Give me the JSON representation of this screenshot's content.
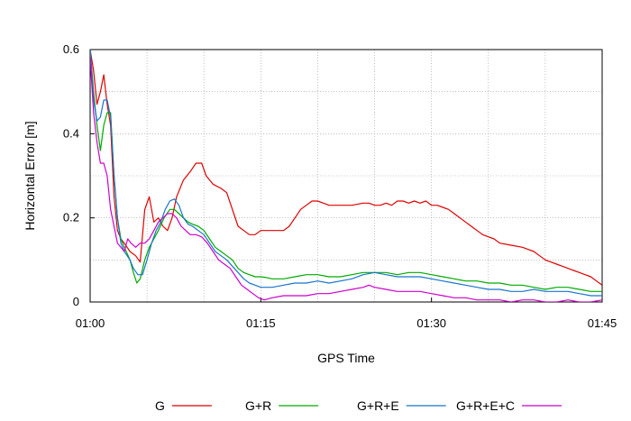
{
  "chart_data": {
    "type": "line",
    "xlabel": "GPS Time",
    "ylabel": "Horizontal Error [m]",
    "xlim": [
      0,
      45
    ],
    "ylim": [
      0,
      0.6
    ],
    "x_ticks": [
      {
        "value": 0,
        "label": "01:00"
      },
      {
        "value": 15,
        "label": "01:15"
      },
      {
        "value": 30,
        "label": "01:30"
      },
      {
        "value": 45,
        "label": "01:45"
      }
    ],
    "y_ticks": [
      {
        "value": 0,
        "label": "0"
      },
      {
        "value": 0.2,
        "label": "0.2"
      },
      {
        "value": 0.4,
        "label": "0.4"
      },
      {
        "value": 0.6,
        "label": "0.6"
      }
    ],
    "grid": true,
    "legend_position": "bottom",
    "series": [
      {
        "name": "G",
        "color": "#e00000",
        "points": [
          [
            0,
            0.6
          ],
          [
            0.3,
            0.55
          ],
          [
            0.6,
            0.47
          ],
          [
            0.9,
            0.5
          ],
          [
            1.2,
            0.54
          ],
          [
            1.5,
            0.47
          ],
          [
            1.8,
            0.42
          ],
          [
            2.1,
            0.25
          ],
          [
            2.4,
            0.17
          ],
          [
            2.7,
            0.15
          ],
          [
            3.0,
            0.14
          ],
          [
            3.5,
            0.12
          ],
          [
            4.0,
            0.11
          ],
          [
            4.4,
            0.095
          ],
          [
            4.8,
            0.22
          ],
          [
            5.2,
            0.25
          ],
          [
            5.6,
            0.19
          ],
          [
            6.0,
            0.2
          ],
          [
            6.4,
            0.18
          ],
          [
            6.8,
            0.17
          ],
          [
            7.2,
            0.2
          ],
          [
            7.6,
            0.25
          ],
          [
            8.2,
            0.29
          ],
          [
            8.8,
            0.31
          ],
          [
            9.3,
            0.33
          ],
          [
            9.8,
            0.33
          ],
          [
            10.2,
            0.3
          ],
          [
            10.8,
            0.28
          ],
          [
            11.5,
            0.27
          ],
          [
            12.0,
            0.26
          ],
          [
            12.5,
            0.22
          ],
          [
            13.0,
            0.18
          ],
          [
            13.5,
            0.17
          ],
          [
            14.0,
            0.16
          ],
          [
            14.5,
            0.16
          ],
          [
            15.0,
            0.17
          ],
          [
            15.5,
            0.17
          ],
          [
            16.0,
            0.17
          ],
          [
            16.5,
            0.17
          ],
          [
            17.0,
            0.17
          ],
          [
            17.5,
            0.18
          ],
          [
            18.0,
            0.2
          ],
          [
            18.5,
            0.22
          ],
          [
            19.0,
            0.23
          ],
          [
            19.5,
            0.24
          ],
          [
            20.0,
            0.24
          ],
          [
            20.5,
            0.235
          ],
          [
            21,
            0.23
          ],
          [
            22,
            0.23
          ],
          [
            23,
            0.23
          ],
          [
            24,
            0.235
          ],
          [
            24.5,
            0.235
          ],
          [
            25,
            0.23
          ],
          [
            25.5,
            0.23
          ],
          [
            26,
            0.235
          ],
          [
            26.5,
            0.23
          ],
          [
            27,
            0.24
          ],
          [
            27.5,
            0.24
          ],
          [
            28,
            0.235
          ],
          [
            28.5,
            0.24
          ],
          [
            29,
            0.235
          ],
          [
            29.5,
            0.24
          ],
          [
            30,
            0.23
          ],
          [
            30.5,
            0.23
          ],
          [
            31,
            0.225
          ],
          [
            31.5,
            0.22
          ],
          [
            32,
            0.21
          ],
          [
            32.5,
            0.2
          ],
          [
            33,
            0.19
          ],
          [
            33.5,
            0.18
          ],
          [
            34,
            0.17
          ],
          [
            34.5,
            0.16
          ],
          [
            35,
            0.155
          ],
          [
            35.5,
            0.15
          ],
          [
            36,
            0.14
          ],
          [
            37,
            0.135
          ],
          [
            38,
            0.13
          ],
          [
            38.5,
            0.125
          ],
          [
            39,
            0.12
          ],
          [
            39.5,
            0.11
          ],
          [
            40,
            0.1
          ],
          [
            40.5,
            0.095
          ],
          [
            41,
            0.09
          ],
          [
            41.5,
            0.085
          ],
          [
            42,
            0.08
          ],
          [
            42.5,
            0.075
          ],
          [
            43,
            0.07
          ],
          [
            43.5,
            0.065
          ],
          [
            44,
            0.06
          ],
          [
            44.5,
            0.05
          ],
          [
            45,
            0.04
          ]
        ]
      },
      {
        "name": "G+R",
        "color": "#00aa00",
        "points": [
          [
            0,
            0.6
          ],
          [
            0.3,
            0.5
          ],
          [
            0.6,
            0.42
          ],
          [
            0.9,
            0.36
          ],
          [
            1.2,
            0.42
          ],
          [
            1.5,
            0.45
          ],
          [
            1.8,
            0.45
          ],
          [
            2.1,
            0.3
          ],
          [
            2.4,
            0.2
          ],
          [
            2.7,
            0.15
          ],
          [
            3.0,
            0.13
          ],
          [
            3.5,
            0.1
          ],
          [
            3.8,
            0.07
          ],
          [
            4.1,
            0.045
          ],
          [
            4.4,
            0.055
          ],
          [
            4.8,
            0.1
          ],
          [
            5.2,
            0.13
          ],
          [
            5.6,
            0.15
          ],
          [
            6.0,
            0.17
          ],
          [
            6.5,
            0.2
          ],
          [
            7.0,
            0.22
          ],
          [
            7.4,
            0.22
          ],
          [
            7.8,
            0.21
          ],
          [
            8.2,
            0.2
          ],
          [
            8.6,
            0.19
          ],
          [
            9.0,
            0.185
          ],
          [
            9.5,
            0.18
          ],
          [
            10,
            0.17
          ],
          [
            10.5,
            0.15
          ],
          [
            11,
            0.13
          ],
          [
            11.5,
            0.12
          ],
          [
            12,
            0.11
          ],
          [
            12.5,
            0.1
          ],
          [
            13,
            0.08
          ],
          [
            13.5,
            0.07
          ],
          [
            14,
            0.065
          ],
          [
            14.5,
            0.06
          ],
          [
            15,
            0.06
          ],
          [
            15.5,
            0.058
          ],
          [
            16,
            0.055
          ],
          [
            17,
            0.055
          ],
          [
            18,
            0.06
          ],
          [
            19,
            0.065
          ],
          [
            20,
            0.065
          ],
          [
            21,
            0.06
          ],
          [
            22,
            0.06
          ],
          [
            23,
            0.065
          ],
          [
            24,
            0.07
          ],
          [
            25,
            0.07
          ],
          [
            26,
            0.07
          ],
          [
            27,
            0.065
          ],
          [
            28,
            0.07
          ],
          [
            29,
            0.07
          ],
          [
            30,
            0.065
          ],
          [
            31,
            0.06
          ],
          [
            32,
            0.055
          ],
          [
            33,
            0.05
          ],
          [
            34,
            0.05
          ],
          [
            35,
            0.045
          ],
          [
            36,
            0.045
          ],
          [
            37,
            0.04
          ],
          [
            38,
            0.04
          ],
          [
            39,
            0.035
          ],
          [
            40,
            0.03
          ],
          [
            41,
            0.035
          ],
          [
            42,
            0.035
          ],
          [
            43,
            0.03
          ],
          [
            44,
            0.025
          ],
          [
            45,
            0.025
          ]
        ]
      },
      {
        "name": "G+R+E",
        "color": "#1874cd",
        "points": [
          [
            0,
            0.6
          ],
          [
            0.3,
            0.48
          ],
          [
            0.6,
            0.43
          ],
          [
            0.9,
            0.44
          ],
          [
            1.2,
            0.48
          ],
          [
            1.5,
            0.48
          ],
          [
            1.8,
            0.44
          ],
          [
            2.1,
            0.3
          ],
          [
            2.4,
            0.2
          ],
          [
            2.7,
            0.14
          ],
          [
            3.0,
            0.12
          ],
          [
            3.5,
            0.1
          ],
          [
            3.8,
            0.08
          ],
          [
            4.2,
            0.065
          ],
          [
            4.6,
            0.065
          ],
          [
            5.0,
            0.1
          ],
          [
            5.4,
            0.14
          ],
          [
            5.8,
            0.17
          ],
          [
            6.2,
            0.19
          ],
          [
            6.6,
            0.22
          ],
          [
            7.0,
            0.24
          ],
          [
            7.4,
            0.245
          ],
          [
            7.8,
            0.23
          ],
          [
            8.2,
            0.2
          ],
          [
            8.6,
            0.185
          ],
          [
            9.0,
            0.18
          ],
          [
            9.5,
            0.17
          ],
          [
            10,
            0.16
          ],
          [
            10.5,
            0.14
          ],
          [
            11,
            0.12
          ],
          [
            11.5,
            0.11
          ],
          [
            12,
            0.1
          ],
          [
            12.5,
            0.085
          ],
          [
            13,
            0.07
          ],
          [
            13.5,
            0.055
          ],
          [
            14,
            0.045
          ],
          [
            14.5,
            0.04
          ],
          [
            15,
            0.035
          ],
          [
            16,
            0.035
          ],
          [
            17,
            0.04
          ],
          [
            18,
            0.045
          ],
          [
            19,
            0.045
          ],
          [
            20,
            0.05
          ],
          [
            21,
            0.045
          ],
          [
            22,
            0.05
          ],
          [
            23,
            0.055
          ],
          [
            24,
            0.065
          ],
          [
            25,
            0.07
          ],
          [
            26,
            0.065
          ],
          [
            27,
            0.06
          ],
          [
            28,
            0.06
          ],
          [
            29,
            0.06
          ],
          [
            30,
            0.055
          ],
          [
            31,
            0.05
          ],
          [
            32,
            0.045
          ],
          [
            33,
            0.04
          ],
          [
            34,
            0.035
          ],
          [
            35,
            0.03
          ],
          [
            36,
            0.03
          ],
          [
            37,
            0.025
          ],
          [
            38,
            0.025
          ],
          [
            39,
            0.03
          ],
          [
            40,
            0.025
          ],
          [
            41,
            0.025
          ],
          [
            42,
            0.025
          ],
          [
            43,
            0.02
          ],
          [
            44,
            0.015
          ],
          [
            45,
            0.015
          ]
        ]
      },
      {
        "name": "G+R+E+C",
        "color": "#cc00cc",
        "points": [
          [
            0,
            0.58
          ],
          [
            0.3,
            0.45
          ],
          [
            0.6,
            0.38
          ],
          [
            0.9,
            0.33
          ],
          [
            1.2,
            0.33
          ],
          [
            1.5,
            0.3
          ],
          [
            1.8,
            0.22
          ],
          [
            2.1,
            0.18
          ],
          [
            2.4,
            0.14
          ],
          [
            2.7,
            0.13
          ],
          [
            3.0,
            0.12
          ],
          [
            3.3,
            0.15
          ],
          [
            3.6,
            0.14
          ],
          [
            4.0,
            0.13
          ],
          [
            4.4,
            0.14
          ],
          [
            4.8,
            0.14
          ],
          [
            5.2,
            0.15
          ],
          [
            5.6,
            0.17
          ],
          [
            6.0,
            0.19
          ],
          [
            6.4,
            0.2
          ],
          [
            6.8,
            0.21
          ],
          [
            7.2,
            0.21
          ],
          [
            7.6,
            0.2
          ],
          [
            8.0,
            0.18
          ],
          [
            8.4,
            0.17
          ],
          [
            8.8,
            0.16
          ],
          [
            9.3,
            0.16
          ],
          [
            9.8,
            0.155
          ],
          [
            10.3,
            0.14
          ],
          [
            10.8,
            0.12
          ],
          [
            11.3,
            0.1
          ],
          [
            11.8,
            0.09
          ],
          [
            12.3,
            0.08
          ],
          [
            12.8,
            0.06
          ],
          [
            13.3,
            0.04
          ],
          [
            13.8,
            0.03
          ],
          [
            14.3,
            0.02
          ],
          [
            14.8,
            0.01
          ],
          [
            15.3,
            0.005
          ],
          [
            16,
            0.01
          ],
          [
            17,
            0.015
          ],
          [
            18,
            0.015
          ],
          [
            19,
            0.015
          ],
          [
            20,
            0.02
          ],
          [
            21,
            0.02
          ],
          [
            22,
            0.025
          ],
          [
            23,
            0.03
          ],
          [
            24,
            0.035
          ],
          [
            24.5,
            0.04
          ],
          [
            25,
            0.035
          ],
          [
            26,
            0.03
          ],
          [
            27,
            0.025
          ],
          [
            28,
            0.025
          ],
          [
            29,
            0.025
          ],
          [
            30,
            0.02
          ],
          [
            31,
            0.015
          ],
          [
            32,
            0.01
          ],
          [
            33,
            0.01
          ],
          [
            34,
            0.005
          ],
          [
            35,
            0.005
          ],
          [
            36,
            0.005
          ],
          [
            37,
            0.0
          ],
          [
            38,
            0.005
          ],
          [
            39,
            0.005
          ],
          [
            40,
            0.0
          ],
          [
            41,
            0.0
          ],
          [
            42,
            0.005
          ],
          [
            43,
            0.0
          ],
          [
            44,
            0.0
          ],
          [
            45,
            0.005
          ]
        ]
      }
    ]
  }
}
